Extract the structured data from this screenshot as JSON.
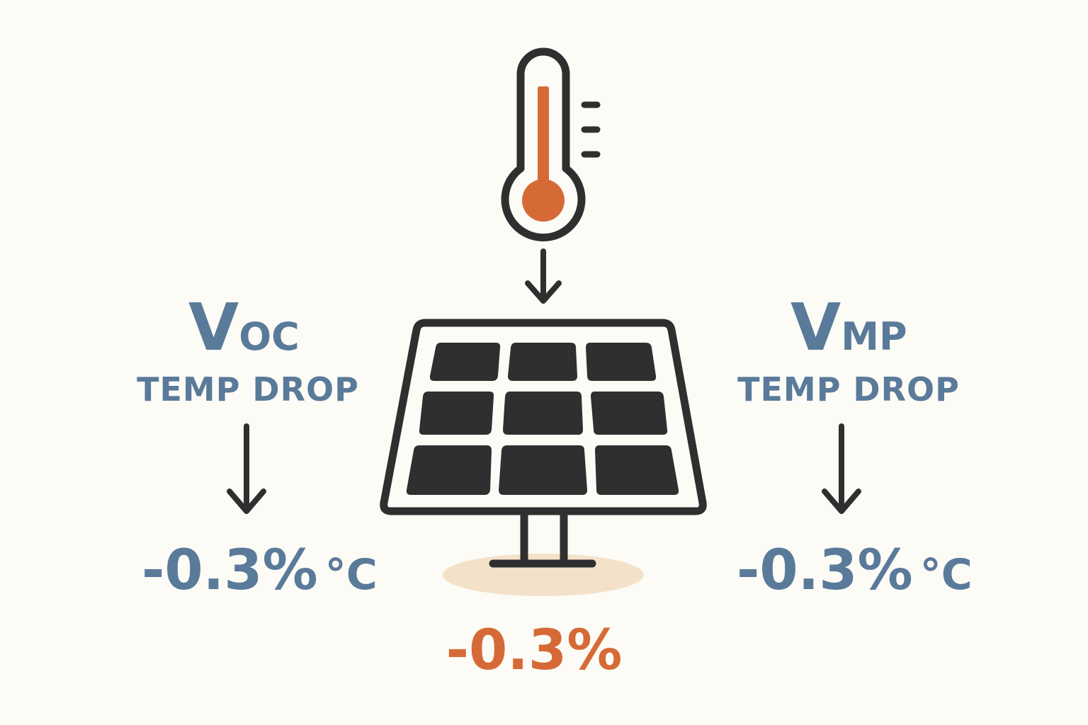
{
  "left": {
    "symbol": "V",
    "subscript": "OC",
    "caption": "TEMP DROP",
    "value": "-0.3%",
    "unit": "°C"
  },
  "right": {
    "symbol": "V",
    "subscript": "MP",
    "caption": "TEMP DROP",
    "value": "-0.3%",
    "unit": "°C"
  },
  "center": {
    "value": "-0.3%"
  },
  "colors": {
    "text_blue": "#5a7a9a",
    "accent_orange": "#d66a36",
    "ink": "#2f2f2f",
    "shadow": "#f3e2c9",
    "background": "#fcfbf6"
  },
  "icons": [
    "thermometer-icon",
    "solar-panel-icon",
    "down-arrow-icon"
  ]
}
